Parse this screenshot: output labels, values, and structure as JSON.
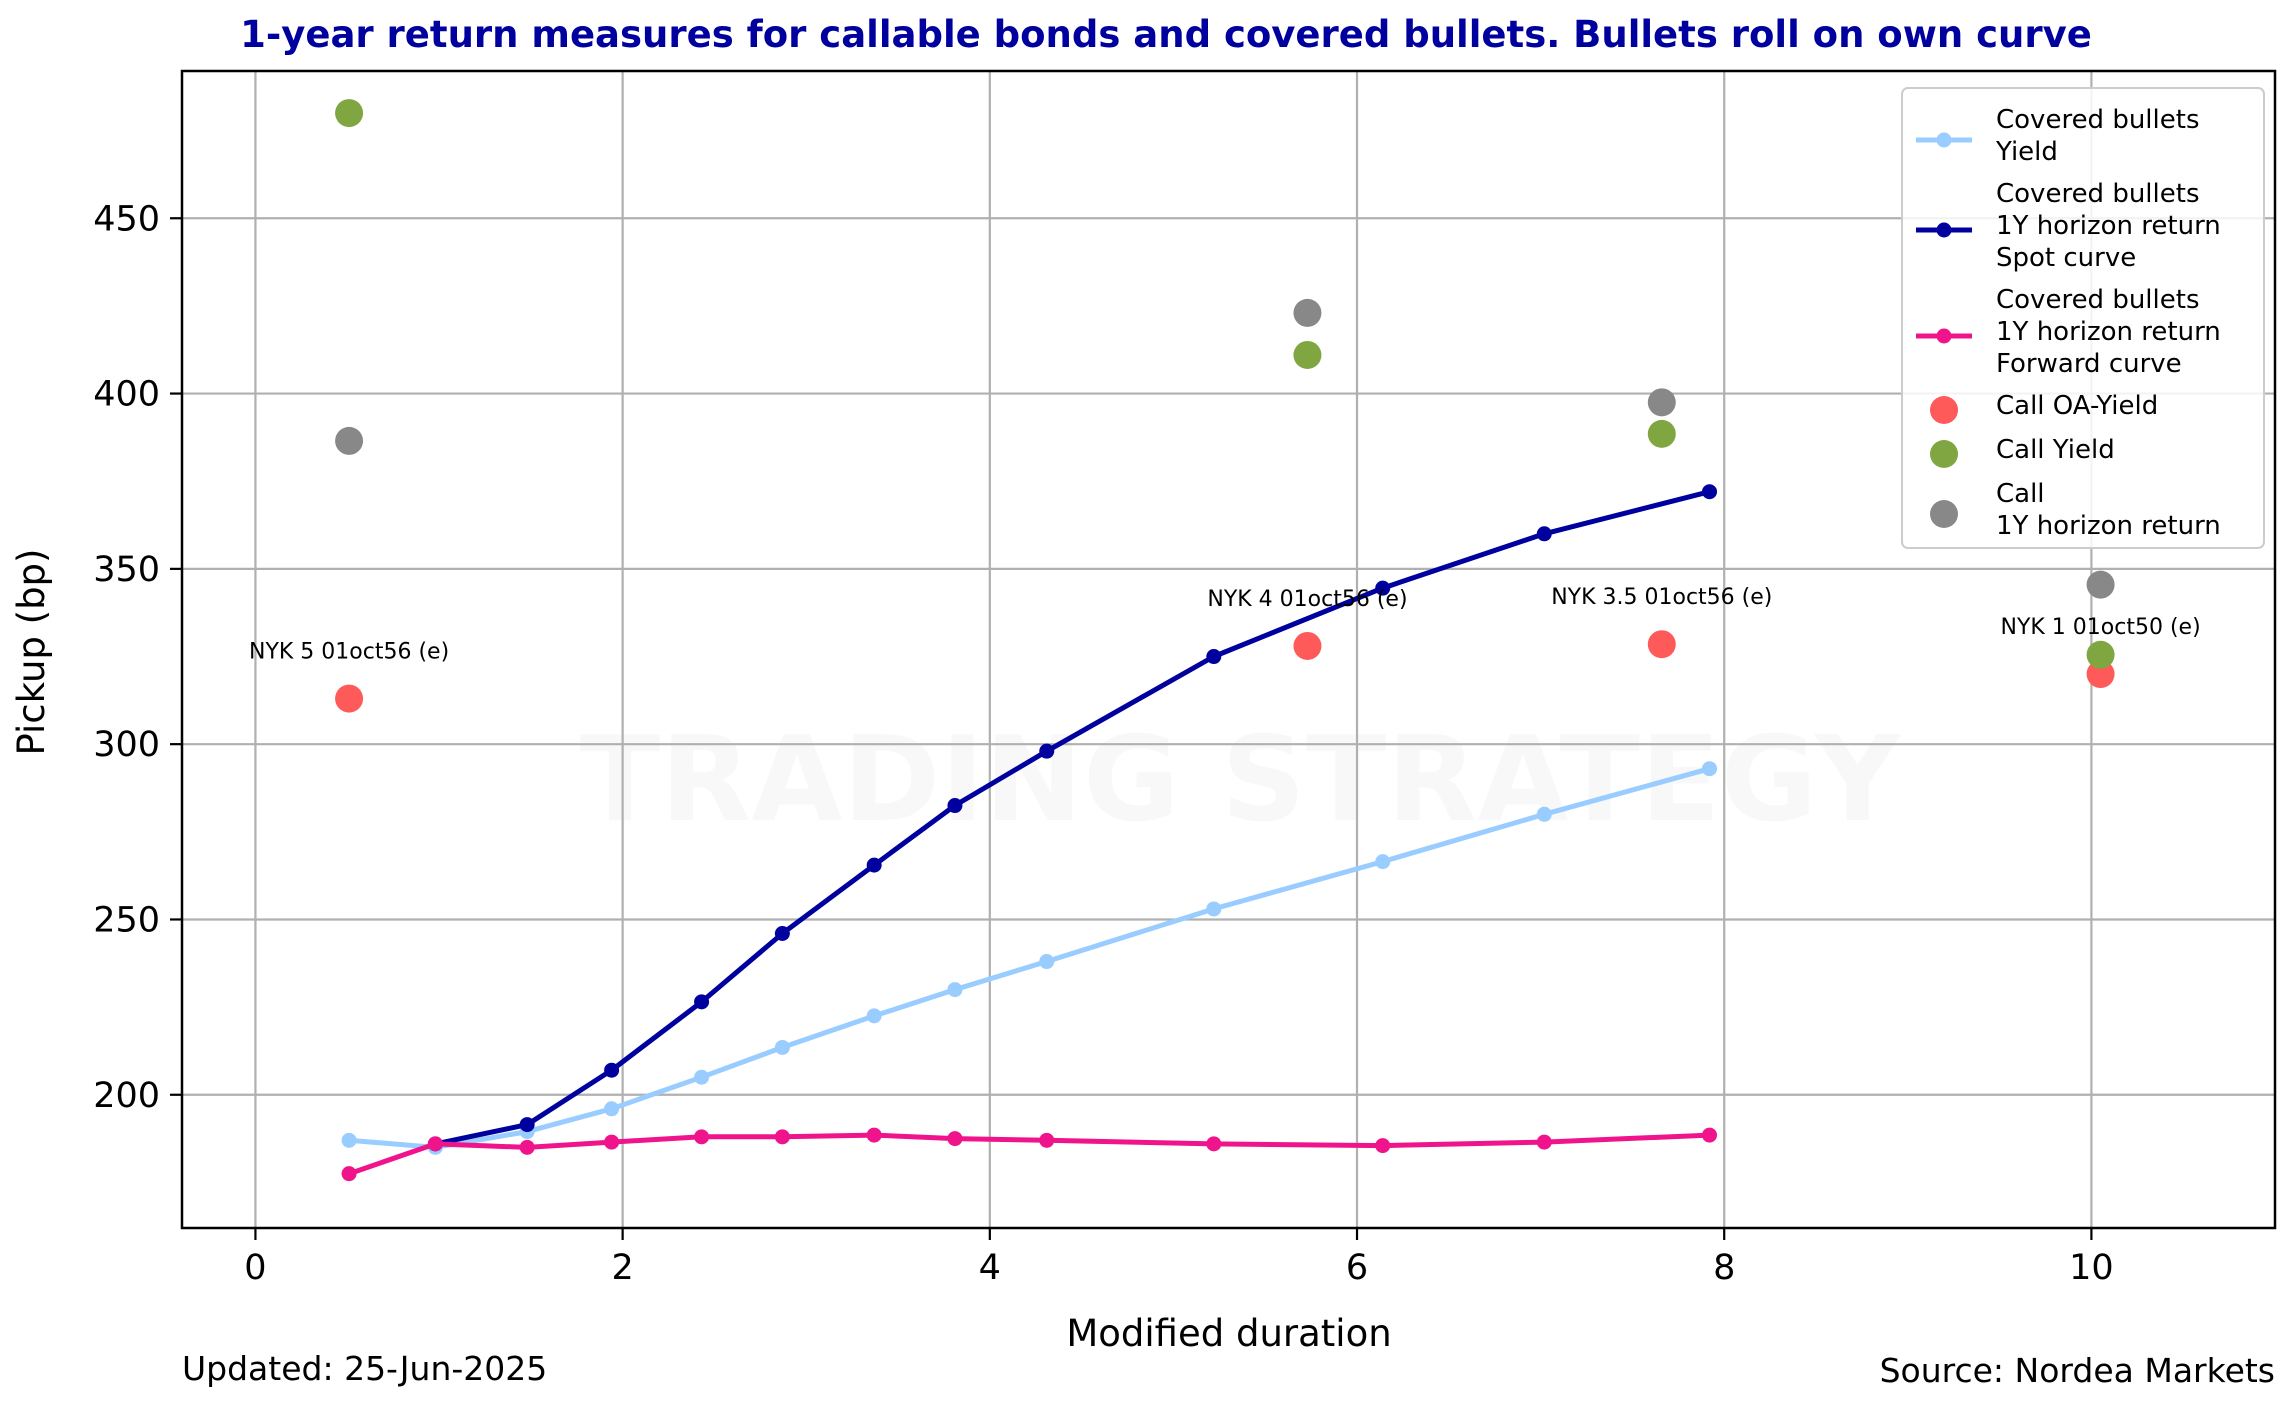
{
  "chart_data": {
    "type": "line",
    "title": "1-year return measures for callable bonds and covered bullets. Bullets roll on own curve",
    "xlabel": "Modified duration",
    "ylabel": "Pickup (bp)",
    "xlim": [
      -0.4,
      11.0
    ],
    "ylim": [
      162,
      492
    ],
    "xticks": [
      0,
      2,
      4,
      6,
      8,
      10
    ],
    "yticks": [
      200,
      250,
      300,
      350,
      400,
      450
    ],
    "grid": true,
    "legend_position": "top-right",
    "colors": {
      "yield": "#99ccff",
      "spot": "#00009f",
      "forward": "#f0148c",
      "call_oa": "#ff5a5a",
      "call_yield": "#7fa640",
      "call_return": "#888888",
      "title": "#00009f"
    },
    "series": [
      {
        "name": "Covered bullets\nYield",
        "kind": "line",
        "color": "#99ccff",
        "points": [
          [
            0.51,
            187
          ],
          [
            0.98,
            185
          ],
          [
            1.48,
            189.5
          ],
          [
            1.94,
            196
          ],
          [
            2.43,
            205
          ],
          [
            2.87,
            213.5
          ],
          [
            3.37,
            222.5
          ],
          [
            3.81,
            230
          ],
          [
            4.31,
            238
          ],
          [
            5.22,
            253
          ],
          [
            6.14,
            266.5
          ],
          [
            7.02,
            280
          ],
          [
            7.92,
            293
          ]
        ]
      },
      {
        "name": "Covered bullets\n1Y horizon return\nSpot curve",
        "kind": "line",
        "color": "#00009f",
        "points": [
          [
            0.98,
            186
          ],
          [
            1.48,
            191.5
          ],
          [
            1.94,
            207
          ],
          [
            2.43,
            226.5
          ],
          [
            2.87,
            246
          ],
          [
            3.37,
            265.5
          ],
          [
            3.81,
            282.5
          ],
          [
            4.31,
            298
          ],
          [
            5.22,
            325
          ],
          [
            6.14,
            344.5
          ],
          [
            7.02,
            360
          ],
          [
            7.92,
            372
          ]
        ]
      },
      {
        "name": "Covered bullets\n1Y horizon return\nForward curve",
        "kind": "line",
        "color": "#f0148c",
        "points": [
          [
            0.51,
            177.5
          ],
          [
            0.98,
            186
          ],
          [
            1.48,
            185
          ],
          [
            1.94,
            186.5
          ],
          [
            2.43,
            188
          ],
          [
            2.87,
            188
          ],
          [
            3.37,
            188.5
          ],
          [
            3.81,
            187.5
          ],
          [
            4.31,
            187
          ],
          [
            5.22,
            186
          ],
          [
            6.14,
            185.5
          ],
          [
            7.02,
            186.5
          ],
          [
            7.92,
            188.5
          ]
        ]
      },
      {
        "name": "Call OA-Yield",
        "kind": "scatter",
        "color": "#ff5a5a",
        "points": [
          [
            0.51,
            313
          ],
          [
            5.73,
            328
          ],
          [
            7.66,
            328.5
          ],
          [
            10.05,
            320
          ]
        ]
      },
      {
        "name": "Call Yield",
        "kind": "scatter",
        "color": "#7fa640",
        "points": [
          [
            0.51,
            480
          ],
          [
            5.73,
            411
          ],
          [
            7.66,
            388.5
          ],
          [
            10.05,
            325.5
          ]
        ]
      },
      {
        "name": "Call\n1Y horizon return",
        "kind": "scatter",
        "color": "#888888",
        "points": [
          [
            0.51,
            386.5
          ],
          [
            5.73,
            423
          ],
          [
            7.66,
            397.5
          ],
          [
            10.05,
            345.5
          ]
        ]
      }
    ],
    "annotations": [
      {
        "text": "NYK 5 01oct56 (e)",
        "x": 0.51,
        "y": 313
      },
      {
        "text": "NYK 4 01oct56 (e)",
        "x": 5.73,
        "y": 328
      },
      {
        "text": "NYK 3.5 01oct56 (e)",
        "x": 7.66,
        "y": 328.5
      },
      {
        "text": "NYK 1 01oct50 (e)",
        "x": 10.05,
        "y": 320
      }
    ]
  },
  "footer": {
    "updated": "Updated: 25-Jun-2025",
    "source": "Source: Nordea Markets"
  },
  "watermark": "TRADING STRATEGY"
}
